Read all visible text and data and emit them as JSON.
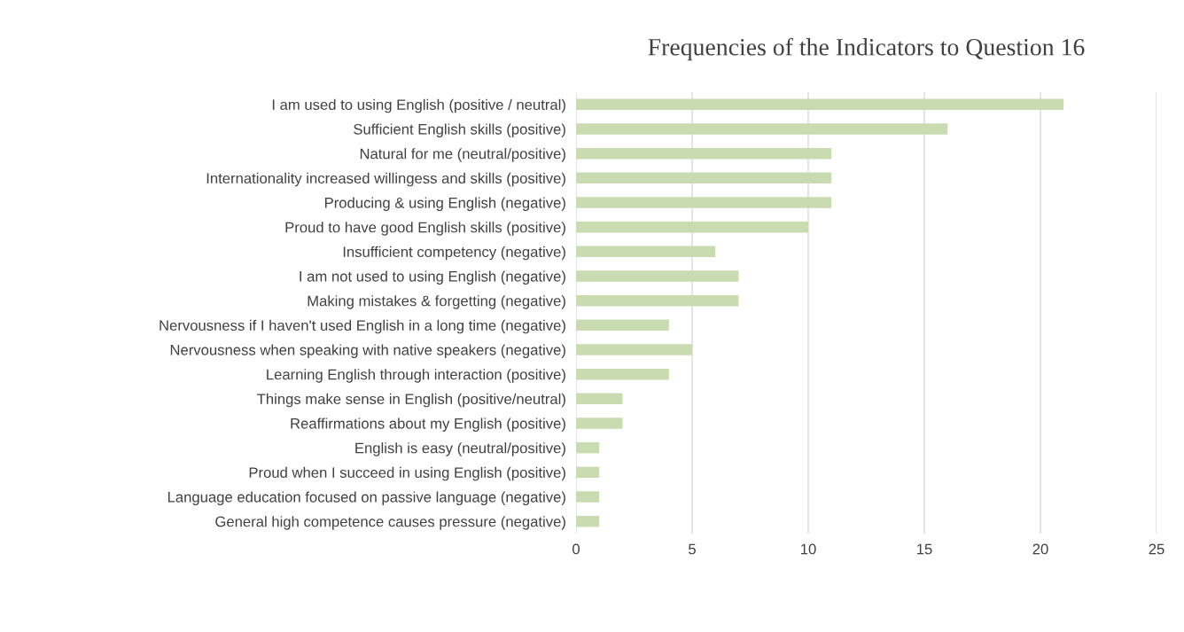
{
  "chart_data": {
    "type": "bar",
    "orientation": "horizontal",
    "title": "Frequencies of the Indicators to Question 16",
    "categories": [
      "I am used to using English (positive / neutral)",
      "Sufficient English skills (positive)",
      "Natural for me (neutral/positive)",
      "Internationality increased willingess and skills (positive)",
      "Producing & using English (negative)",
      "Proud to have good English skills (positive)",
      "Insufficient competency (negative)",
      "I am not used to using English (negative)",
      "Making mistakes & forgetting (negative)",
      "Nervousness if I haven't used English in a long time (negative)",
      "Nervousness when speaking with native speakers (negative)",
      "Learning English through interaction (positive)",
      "Things make sense in English (positive/neutral)",
      "Reaffirmations about my English (positive)",
      "English is easy (neutral/positive)",
      "Proud when I succeed in using English (positive)",
      "Language education focused on passive language (negative)",
      "General high competence causes pressure (negative)"
    ],
    "values": [
      21,
      16,
      11,
      11,
      11,
      10,
      6,
      7,
      7,
      4,
      5,
      4,
      2,
      2,
      1,
      1,
      1,
      1
    ],
    "color": "#c9dbb1",
    "xlim": [
      0,
      25
    ],
    "xticks": [
      0,
      5,
      10,
      15,
      20,
      25
    ],
    "grid": "x"
  }
}
